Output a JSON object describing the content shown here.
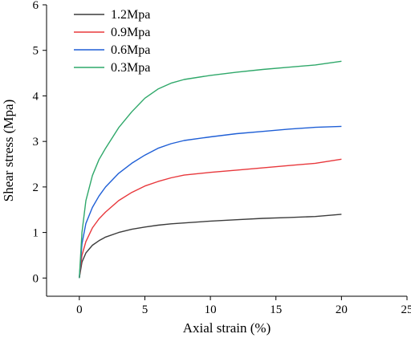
{
  "chart_data": {
    "type": "line",
    "title": "",
    "xlabel": "Axial strain (%)",
    "ylabel": "Shear stress (Mpa)",
    "xlim": [
      -2.5,
      25
    ],
    "ylim": [
      -0.4,
      6
    ],
    "xticks": [
      0,
      5,
      10,
      15,
      20,
      25
    ],
    "yticks": [
      0,
      1,
      2,
      3,
      4,
      5,
      6
    ],
    "grid": false,
    "legend_position": "top-left",
    "series": [
      {
        "name": "1.2Mpa",
        "color": "#3c3c3c",
        "x": [
          0,
          0.2,
          0.5,
          1,
          1.5,
          2,
          3,
          4,
          5,
          6,
          7,
          8,
          10,
          12,
          14,
          16,
          18,
          20
        ],
        "y": [
          0,
          0.35,
          0.55,
          0.72,
          0.82,
          0.9,
          1.0,
          1.07,
          1.12,
          1.16,
          1.19,
          1.21,
          1.25,
          1.28,
          1.31,
          1.33,
          1.35,
          1.4
        ]
      },
      {
        "name": "0.9Mpa",
        "color": "#e8383c",
        "x": [
          0,
          0.2,
          0.5,
          1,
          1.5,
          2,
          3,
          4,
          5,
          6,
          7,
          8,
          10,
          12,
          14,
          16,
          18,
          20
        ],
        "y": [
          0,
          0.5,
          0.8,
          1.1,
          1.3,
          1.45,
          1.7,
          1.88,
          2.02,
          2.12,
          2.2,
          2.26,
          2.32,
          2.37,
          2.42,
          2.47,
          2.52,
          2.61
        ]
      },
      {
        "name": "0.6Mpa",
        "color": "#1f5fd6",
        "x": [
          0,
          0.2,
          0.5,
          1,
          1.5,
          2,
          3,
          4,
          5,
          6,
          7,
          8,
          10,
          12,
          14,
          16,
          18,
          20
        ],
        "y": [
          0,
          0.75,
          1.2,
          1.55,
          1.8,
          2.0,
          2.3,
          2.52,
          2.7,
          2.85,
          2.95,
          3.02,
          3.1,
          3.17,
          3.22,
          3.27,
          3.31,
          3.33
        ]
      },
      {
        "name": "0.3Mpa",
        "color": "#2fa86a",
        "x": [
          0,
          0.2,
          0.5,
          1,
          1.5,
          2,
          3,
          4,
          5,
          6,
          7,
          8,
          10,
          12,
          14,
          16,
          18,
          20
        ],
        "y": [
          0,
          1.0,
          1.7,
          2.25,
          2.6,
          2.85,
          3.3,
          3.65,
          3.95,
          4.15,
          4.28,
          4.36,
          4.45,
          4.52,
          4.58,
          4.63,
          4.68,
          4.76
        ]
      }
    ]
  }
}
